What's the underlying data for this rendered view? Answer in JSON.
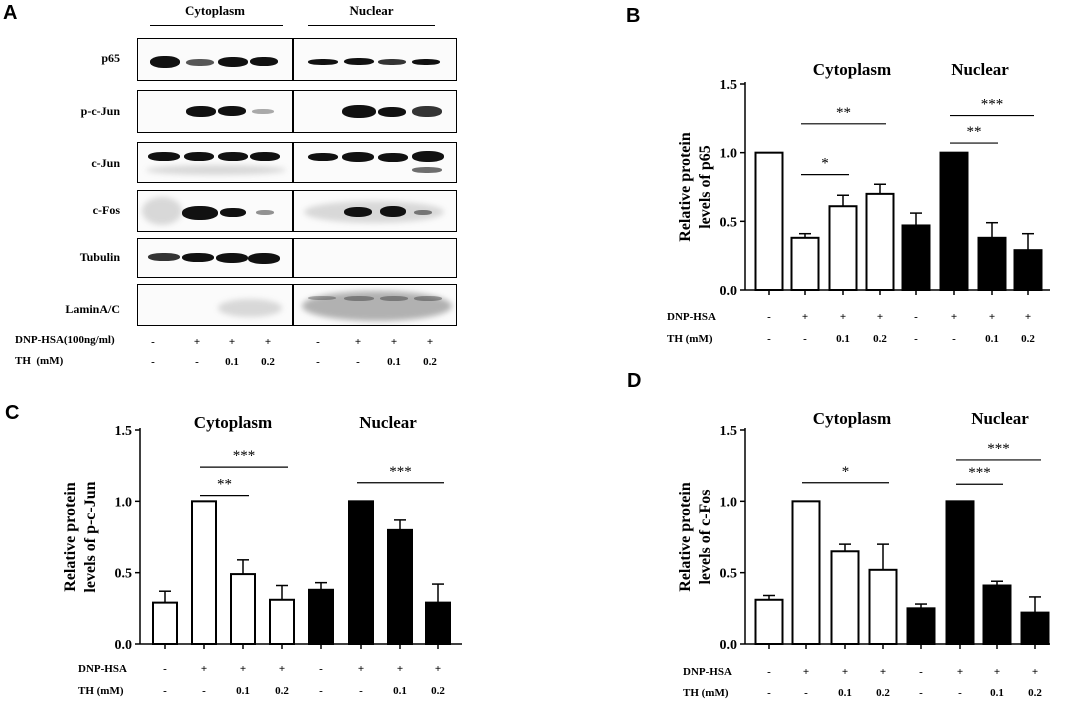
{
  "panel_letters": [
    "A",
    "B",
    "C",
    "D"
  ],
  "blot": {
    "groups": [
      "Cytoplasm",
      "Nuclear"
    ],
    "rows": [
      "p65",
      "p-c-Jun",
      "c-Jun",
      "c-Fos",
      "Tubulin",
      "LaminA/C"
    ],
    "condition_labels": [
      "DNP-HSA(100ng/ml)",
      "TH  (mM)"
    ],
    "dnp_row": [
      "-",
      "+",
      "+",
      "+",
      "-",
      "+",
      "+",
      "+"
    ],
    "th_row": [
      "-",
      "-",
      "0.1",
      "0.2",
      "-",
      "-",
      "0.1",
      "0.2"
    ]
  },
  "colors": {
    "cytoplasm_fill": "#ffffff",
    "nuclear_fill": "#000000",
    "stroke": "#000000"
  },
  "chart_data": [
    {
      "panel": "B",
      "type": "bar",
      "group_titles": [
        "Cytoplasm",
        "Nuclear"
      ],
      "ylabel": "Relative protein levels of p65",
      "ylim": [
        0,
        1.5
      ],
      "yticks": [
        "0.0",
        "0.5",
        "1.0",
        "1.5"
      ],
      "condition_labels": [
        "DNP-HSA",
        "TH  (mM)"
      ],
      "dnp": [
        "-",
        "+",
        "+",
        "+",
        "-",
        "+",
        "+",
        "+"
      ],
      "th": [
        "-",
        "-",
        "0.1",
        "0.2",
        "-",
        "-",
        "0.1",
        "0.2"
      ],
      "values": [
        1.0,
        0.38,
        0.61,
        0.7,
        0.47,
        1.0,
        0.38,
        0.29
      ],
      "errors": [
        0,
        0.03,
        0.08,
        0.07,
        0.09,
        0,
        0.11,
        0.12
      ],
      "significance": [
        {
          "from": 1,
          "to": 2,
          "label": "*",
          "y": 0.84
        },
        {
          "from": 1,
          "to": 3,
          "label": "**",
          "y": 1.21
        },
        {
          "from": 5,
          "to": 6,
          "label": "**",
          "y": 1.07
        },
        {
          "from": 5,
          "to": 7,
          "label": "***",
          "y": 1.27
        }
      ]
    },
    {
      "panel": "C",
      "type": "bar",
      "group_titles": [
        "Cytoplasm",
        "Nuclear"
      ],
      "ylabel": "Relative protein levels of p-c-Jun",
      "ylim": [
        0,
        1.5
      ],
      "yticks": [
        "0.0",
        "0.5",
        "1.0",
        "1.5"
      ],
      "condition_labels": [
        "DNP-HSA",
        "TH  (mM)"
      ],
      "dnp": [
        "-",
        "+",
        "+",
        "+",
        "-",
        "+",
        "+",
        "+"
      ],
      "th": [
        "-",
        "-",
        "0.1",
        "0.2",
        "-",
        "-",
        "0.1",
        "0.2"
      ],
      "values": [
        0.29,
        1.0,
        0.49,
        0.31,
        0.38,
        1.0,
        0.8,
        0.29
      ],
      "errors": [
        0.08,
        0,
        0.1,
        0.1,
        0.05,
        0,
        0.07,
        0.13
      ],
      "significance": [
        {
          "from": 1,
          "to": 2,
          "label": "**",
          "y": 1.04
        },
        {
          "from": 1,
          "to": 3,
          "label": "***",
          "y": 1.24
        },
        {
          "from": 5,
          "to": 7,
          "label": "***",
          "y": 1.13
        }
      ]
    },
    {
      "panel": "D",
      "type": "bar",
      "group_titles": [
        "Cytoplasm",
        "Nuclear"
      ],
      "ylabel": "Relative protein levels of c-Fos",
      "ylim": [
        0,
        1.5
      ],
      "yticks": [
        "0.0",
        "0.5",
        "1.0",
        "1.5"
      ],
      "condition_labels": [
        "DNP-HSA",
        "TH  (mM)"
      ],
      "dnp": [
        "-",
        "+",
        "+",
        "+",
        "-",
        "+",
        "+",
        "+"
      ],
      "th": [
        "-",
        "-",
        "0.1",
        "0.2",
        "-",
        "-",
        "0.1",
        "0.2"
      ],
      "values": [
        0.31,
        1.0,
        0.65,
        0.52,
        0.25,
        1.0,
        0.41,
        0.22
      ],
      "errors": [
        0.03,
        0,
        0.05,
        0.18,
        0.03,
        0,
        0.03,
        0.11
      ],
      "significance": [
        {
          "from": 1,
          "to": 3,
          "label": "*",
          "y": 1.13
        },
        {
          "from": 5,
          "to": 6,
          "label": "***",
          "y": 1.12
        },
        {
          "from": 5,
          "to": 7,
          "label": "***",
          "y": 1.29
        }
      ]
    }
  ]
}
